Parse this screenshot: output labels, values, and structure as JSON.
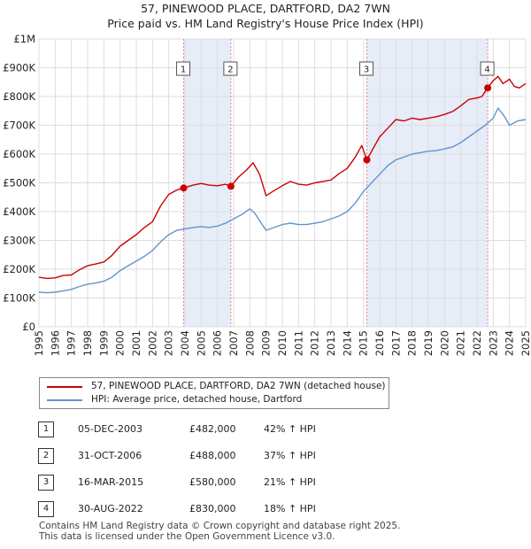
{
  "header": {
    "title": "57, PINEWOOD PLACE, DARTFORD, DA2 7WN",
    "subtitle": "Price paid vs. HM Land Registry's House Price Index (HPI)"
  },
  "colors": {
    "property": "#cc0000",
    "hpi": "#6495cc",
    "shade": "#e6ecf8",
    "marker_line": "#dd8888",
    "grid": "#dddddd"
  },
  "chart_data": {
    "type": "line",
    "xlim": [
      1995,
      2025
    ],
    "ylim": [
      0,
      1000000
    ],
    "y_ticks": [
      0,
      100000,
      200000,
      300000,
      400000,
      500000,
      600000,
      700000,
      800000,
      900000,
      1000000
    ],
    "y_tick_labels": [
      "£0",
      "£100K",
      "£200K",
      "£300K",
      "£400K",
      "£500K",
      "£600K",
      "£700K",
      "£800K",
      "£900K",
      "£1M"
    ],
    "x_ticks": [
      1995,
      1996,
      1997,
      1998,
      1999,
      2000,
      2001,
      2002,
      2003,
      2004,
      2005,
      2006,
      2007,
      2008,
      2009,
      2010,
      2011,
      2012,
      2013,
      2014,
      2015,
      2016,
      2017,
      2018,
      2019,
      2020,
      2021,
      2022,
      2023,
      2024,
      2025
    ],
    "x_tick_labels": [
      "1995",
      "1996",
      "1997",
      "1998",
      "1999",
      "2000",
      "2001",
      "2002",
      "2003",
      "2004",
      "2005",
      "2006",
      "2007",
      "2008",
      "2009",
      "2010",
      "2011",
      "2012",
      "2013",
      "2014",
      "2015",
      "2016",
      "2017",
      "2018",
      "2019",
      "2020",
      "2021",
      "2022",
      "2023",
      "2024",
      "2025"
    ],
    "shaded_ranges": [
      [
        2003.92,
        2006.83
      ],
      [
        2015.21,
        2022.66
      ]
    ],
    "series": [
      {
        "name": "57, PINEWOOD PLACE, DARTFORD, DA2 7WN (detached house)",
        "x": [
          1995,
          1995.5,
          1996,
          1996.5,
          1997,
          1997.5,
          1998,
          1998.5,
          1999,
          1999.5,
          2000,
          2000.5,
          2001,
          2001.5,
          2002,
          2002.5,
          2003,
          2003.5,
          2003.92,
          2004.5,
          2005,
          2005.5,
          2006,
          2006.5,
          2006.83,
          2007.3,
          2007.8,
          2008.2,
          2008.6,
          2009,
          2009.4,
          2010,
          2010.5,
          2011,
          2011.5,
          2012,
          2012.5,
          2013,
          2013.5,
          2014,
          2014.5,
          2014.9,
          2015.21,
          2015.7,
          2016,
          2016.5,
          2017,
          2017.5,
          2018,
          2018.5,
          2019,
          2019.5,
          2020,
          2020.5,
          2021,
          2021.5,
          2022,
          2022.3,
          2022.66,
          2023,
          2023.3,
          2023.6,
          2024,
          2024.3,
          2024.6,
          2025
        ],
        "values": [
          172000,
          168000,
          170000,
          178000,
          180000,
          198000,
          212000,
          218000,
          225000,
          248000,
          280000,
          300000,
          320000,
          345000,
          365000,
          420000,
          460000,
          475000,
          482000,
          492000,
          498000,
          492000,
          490000,
          495000,
          488000,
          520000,
          545000,
          570000,
          530000,
          455000,
          470000,
          490000,
          505000,
          495000,
          492000,
          500000,
          505000,
          510000,
          532000,
          550000,
          590000,
          630000,
          580000,
          630000,
          660000,
          690000,
          720000,
          715000,
          725000,
          720000,
          725000,
          730000,
          738000,
          748000,
          768000,
          790000,
          795000,
          800000,
          830000,
          855000,
          870000,
          845000,
          860000,
          835000,
          830000,
          845000
        ]
      },
      {
        "name": "HPI: Average price, detached house, Dartford",
        "x": [
          1995,
          1995.5,
          1996,
          1996.5,
          1997,
          1997.5,
          1998,
          1998.5,
          1999,
          1999.5,
          2000,
          2000.5,
          2001,
          2001.5,
          2002,
          2002.5,
          2003,
          2003.5,
          2004,
          2004.5,
          2005,
          2005.5,
          2006,
          2006.5,
          2007,
          2007.5,
          2008,
          2008.3,
          2008.7,
          2009,
          2009.5,
          2010,
          2010.5,
          2011,
          2011.5,
          2012,
          2012.5,
          2013,
          2013.5,
          2014,
          2014.5,
          2015,
          2015.5,
          2016,
          2016.5,
          2017,
          2017.5,
          2018,
          2018.5,
          2019,
          2019.5,
          2020,
          2020.5,
          2021,
          2021.5,
          2022,
          2022.5,
          2023,
          2023.3,
          2023.7,
          2024,
          2024.5,
          2025
        ],
        "values": [
          120000,
          118000,
          120000,
          125000,
          130000,
          140000,
          148000,
          152000,
          158000,
          172000,
          195000,
          212000,
          228000,
          245000,
          265000,
          295000,
          320000,
          335000,
          340000,
          345000,
          348000,
          345000,
          350000,
          360000,
          375000,
          390000,
          410000,
          395000,
          360000,
          335000,
          345000,
          355000,
          360000,
          355000,
          355000,
          360000,
          365000,
          375000,
          385000,
          400000,
          430000,
          470000,
          500000,
          530000,
          560000,
          580000,
          590000,
          600000,
          605000,
          610000,
          612000,
          618000,
          625000,
          640000,
          660000,
          680000,
          700000,
          725000,
          760000,
          730000,
          700000,
          715000,
          720000
        ]
      }
    ],
    "sales": [
      {
        "marker": "1",
        "x": 2003.92,
        "y": 482000
      },
      {
        "marker": "2",
        "x": 2006.83,
        "y": 488000
      },
      {
        "marker": "3",
        "x": 2015.21,
        "y": 580000
      },
      {
        "marker": "4",
        "x": 2022.66,
        "y": 830000
      }
    ]
  },
  "legend": {
    "property_label": "57, PINEWOOD PLACE, DARTFORD, DA2 7WN (detached house)",
    "hpi_label": "HPI: Average price, detached house, Dartford"
  },
  "sales_table": [
    {
      "num": "1",
      "date": "05-DEC-2003",
      "price": "£482,000",
      "hpi": "42% ↑ HPI"
    },
    {
      "num": "2",
      "date": "31-OCT-2006",
      "price": "£488,000",
      "hpi": "37% ↑ HPI"
    },
    {
      "num": "3",
      "date": "16-MAR-2015",
      "price": "£580,000",
      "hpi": "21% ↑ HPI"
    },
    {
      "num": "4",
      "date": "30-AUG-2022",
      "price": "£830,000",
      "hpi": "18% ↑ HPI"
    }
  ],
  "footer": {
    "line1": "Contains HM Land Registry data © Crown copyright and database right 2025.",
    "line2": "This data is licensed under the Open Government Licence v3.0."
  }
}
